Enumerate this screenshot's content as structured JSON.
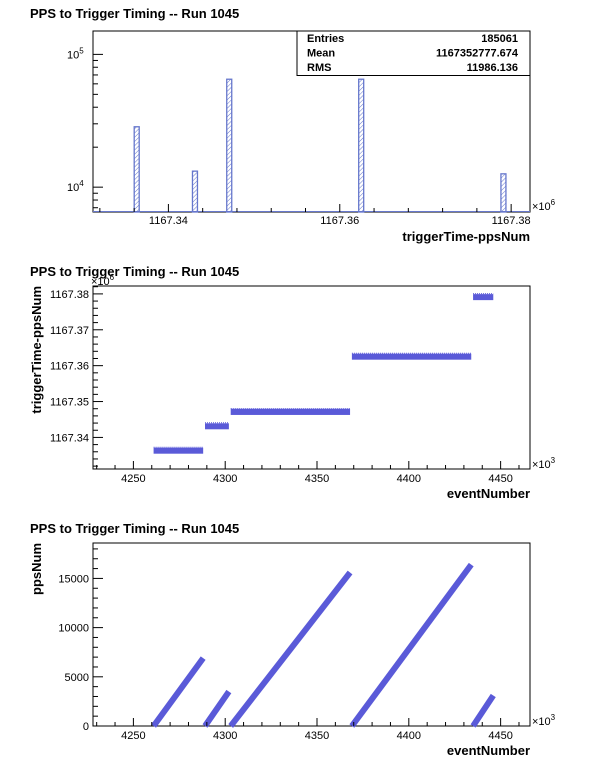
{
  "chart_data": [
    {
      "type": "bar",
      "title": "PPS to Trigger Timing -- Run 1045",
      "xlabel": "triggerTime-ppsNum",
      "ylabel": "",
      "x_multiplier": "×10",
      "x_multiplier_exp": "6",
      "xlim": [
        1167.3312,
        1167.3822
      ],
      "ylim": [
        6500,
        150000
      ],
      "yscale": "log",
      "xticks": [
        1167.34,
        1167.36,
        1167.38
      ],
      "xtick_labels": [
        "1167.34",
        "1167.36",
        "1167.38"
      ],
      "yticks": [
        10000,
        100000
      ],
      "ytick_labels": [
        {
          "base": "10",
          "exp": "4"
        },
        {
          "base": "10",
          "exp": "5"
        }
      ],
      "bars": [
        {
          "x": 1167.3363,
          "value": 28500
        },
        {
          "x": 1167.3431,
          "value": 13200
        },
        {
          "x": 1167.3471,
          "value": 65000
        },
        {
          "x": 1167.3625,
          "value": 65000
        },
        {
          "x": 1167.3791,
          "value": 12600
        }
      ],
      "stats": [
        {
          "label": "Entries",
          "value": "185061"
        },
        {
          "label": "Mean",
          "value": "1167352777.674"
        },
        {
          "label": "RMS",
          "value": "11986.136"
        }
      ],
      "colors": {
        "bar": "#6677cc",
        "hatch": "#6677cc"
      }
    },
    {
      "type": "scatter",
      "title": "PPS to Trigger Timing -- Run 1045",
      "xlabel": "eventNumber",
      "ylabel": "triggerTime-ppsNum",
      "x_multiplier": "×10",
      "x_multiplier_exp": "3",
      "y_multiplier": "×10",
      "y_multiplier_exp": "6",
      "xlim": [
        4228,
        4466
      ],
      "ylim": [
        1167.3312,
        1167.3822
      ],
      "xticks": [
        4250,
        4300,
        4350,
        4400,
        4450
      ],
      "xtick_labels": [
        "4250",
        "4300",
        "4350",
        "4400",
        "4450"
      ],
      "yticks": [
        1167.34,
        1167.35,
        1167.36,
        1167.37,
        1167.38
      ],
      "ytick_labels": [
        "1167.34",
        "1167.35",
        "1167.36",
        "1167.37",
        "1167.38"
      ],
      "segments": [
        {
          "x0": 4261,
          "x1": 4288,
          "y": 1167.3363
        },
        {
          "x0": 4289,
          "x1": 4302,
          "y": 1167.3431
        },
        {
          "x0": 4303,
          "x1": 4368,
          "y": 1167.3471
        },
        {
          "x0": 4369,
          "x1": 4434,
          "y": 1167.3625
        },
        {
          "x0": 4435,
          "x1": 4446,
          "y": 1167.3791
        }
      ],
      "colors": {
        "marker": "#5a5ad8"
      }
    },
    {
      "type": "scatter",
      "title": "PPS to Trigger Timing -- Run 1045",
      "xlabel": "eventNumber",
      "ylabel": "ppsNum",
      "x_multiplier": "×10",
      "x_multiplier_exp": "3",
      "xlim": [
        4228,
        4466
      ],
      "ylim": [
        0,
        18600
      ],
      "xticks": [
        4250,
        4300,
        4350,
        4400,
        4450
      ],
      "xtick_labels": [
        "4250",
        "4300",
        "4350",
        "4400",
        "4450"
      ],
      "yticks": [
        0,
        5000,
        10000,
        15000
      ],
      "ytick_labels": [
        "0",
        "5000",
        "10000",
        "15000"
      ],
      "segments": [
        {
          "x0": 4261,
          "y0": 0,
          "x1": 4288,
          "y1": 6900
        },
        {
          "x0": 4289,
          "y0": 0,
          "x1": 4302,
          "y1": 3500
        },
        {
          "x0": 4303,
          "y0": 0,
          "x1": 4368,
          "y1": 15600
        },
        {
          "x0": 4369,
          "y0": 0,
          "x1": 4434,
          "y1": 16400
        },
        {
          "x0": 4435,
          "y0": 0,
          "x1": 4446,
          "y1": 3100
        }
      ],
      "colors": {
        "marker": "#5a5ad8"
      }
    }
  ]
}
